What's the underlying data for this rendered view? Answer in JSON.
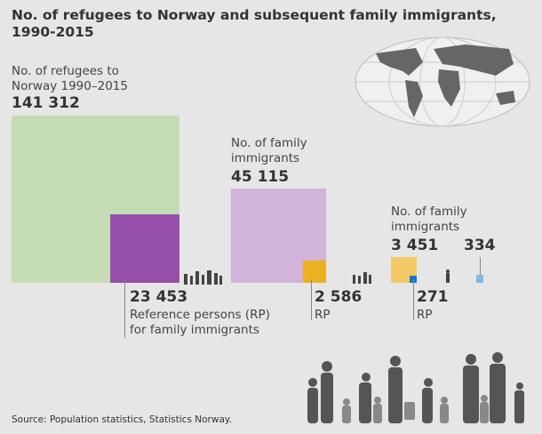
{
  "title": "No. of refugees to Norway and subsequent family immigrants, 1990-2015",
  "source": "Source: Population statistics, Statistics Norway.",
  "chart_data": {
    "type": "area-squares",
    "title": "No. of refugees to Norway and subsequent family immigrants, 1990-2015",
    "groups": [
      {
        "label": "No. of refugees to Norway 1990–2015",
        "value": 141312,
        "value_label": "141 312",
        "color": "#c5dcb4",
        "sub": {
          "label": "Reference persons (RP) for family immigrants",
          "value": 23453,
          "value_label": "23 453",
          "color": "#964fab"
        }
      },
      {
        "label": "No. of family immigrants",
        "value": 45115,
        "value_label": "45 115",
        "color": "#d2b4da",
        "sub": {
          "label": "RP",
          "value": 2586,
          "value_label": "2 586",
          "color": "#ebb11f"
        }
      },
      {
        "label": "No. of family immigrants",
        "value": 3451,
        "value_label": "3 451",
        "color": "#f2c964",
        "sub": {
          "label": "RP",
          "value": 271,
          "value_label": "271",
          "color": "#0b78d0"
        }
      },
      {
        "label": "",
        "value": 334,
        "value_label": "334",
        "color": "#82b7e4"
      }
    ]
  },
  "icons": {
    "globe": "world-map-globe",
    "people": "refugee-silhouettes"
  }
}
